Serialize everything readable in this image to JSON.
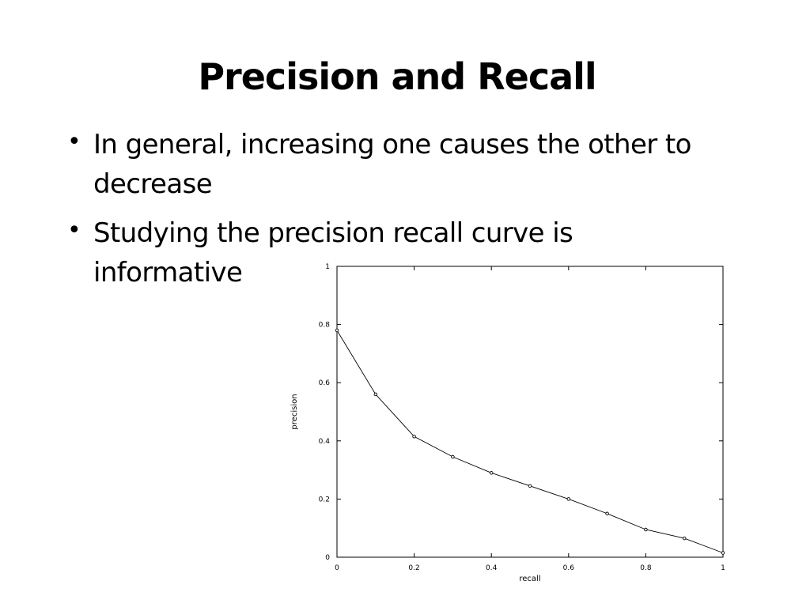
{
  "slide": {
    "title": "Precision and Recall",
    "bullets": [
      "In general, increasing one causes the other to decrease",
      "Studying the precision recall curve is informative"
    ]
  },
  "chart_data": {
    "type": "line",
    "title": "",
    "xlabel": "recall",
    "ylabel": "precision",
    "xlim": [
      0,
      1
    ],
    "ylim": [
      0,
      1
    ],
    "grid": false,
    "x_ticks": [
      "0",
      "0.2",
      "0.4",
      "0.6",
      "0.8",
      "1"
    ],
    "y_ticks": [
      "0",
      "0.2",
      "0.4",
      "0.6",
      "0.8",
      "1"
    ],
    "series": [
      {
        "x": [
          0,
          0.1,
          0.2,
          0.3,
          0.4,
          0.5,
          0.6,
          0.7,
          0.8,
          0.9,
          1.0
        ],
        "y": [
          0.78,
          0.56,
          0.415,
          0.345,
          0.29,
          0.245,
          0.2,
          0.15,
          0.095,
          0.065,
          0.015
        ]
      }
    ]
  },
  "colors": {
    "background": "#ffffff",
    "text": "#000000",
    "line": "#000000"
  }
}
